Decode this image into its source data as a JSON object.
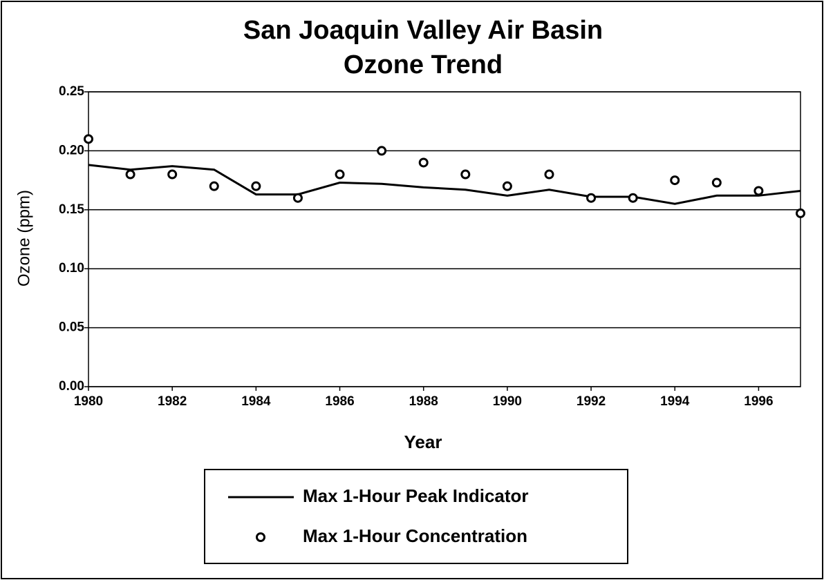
{
  "chart_data": {
    "type": "line",
    "title": "San Joaquin Valley Air Basin",
    "subtitle": "Ozone Trend",
    "x_label": "Year",
    "y_label": "Ozone (ppm)",
    "x": [
      1980,
      1981,
      1982,
      1983,
      1984,
      1985,
      1986,
      1987,
      1988,
      1989,
      1990,
      1991,
      1992,
      1993,
      1994,
      1995,
      1996,
      1997
    ],
    "series": [
      {
        "name": "Max 1-Hour Peak Indicator",
        "type": "line",
        "color": "#000000",
        "values": [
          0.188,
          0.184,
          0.187,
          0.184,
          0.163,
          0.163,
          0.173,
          0.172,
          0.169,
          0.167,
          0.162,
          0.167,
          0.161,
          0.161,
          0.155,
          0.162,
          0.162,
          0.166
        ]
      },
      {
        "name": "Max 1-Hour Concentration",
        "type": "scatter",
        "color": "#000000",
        "values": [
          0.21,
          0.18,
          0.18,
          0.17,
          0.17,
          0.16,
          0.18,
          0.2,
          0.19,
          0.18,
          0.17,
          0.18,
          0.16,
          0.16,
          0.175,
          0.173,
          0.166,
          0.147
        ]
      }
    ],
    "xlim": [
      1980,
      1997
    ],
    "xticks": [
      1980,
      1982,
      1984,
      1986,
      1988,
      1990,
      1992,
      1994,
      1996
    ],
    "ylim": [
      0,
      0.25
    ],
    "yticks": [
      {
        "value": 0,
        "label": "0.00"
      },
      {
        "value": 0.05,
        "label": "0.05"
      },
      {
        "value": 0.1,
        "label": "0.10"
      },
      {
        "value": 0.15,
        "label": "0.15"
      },
      {
        "value": 0.2,
        "label": "0.20"
      },
      {
        "value": 0.25,
        "label": "0.25"
      }
    ],
    "grid": true,
    "legend": "bottom"
  }
}
